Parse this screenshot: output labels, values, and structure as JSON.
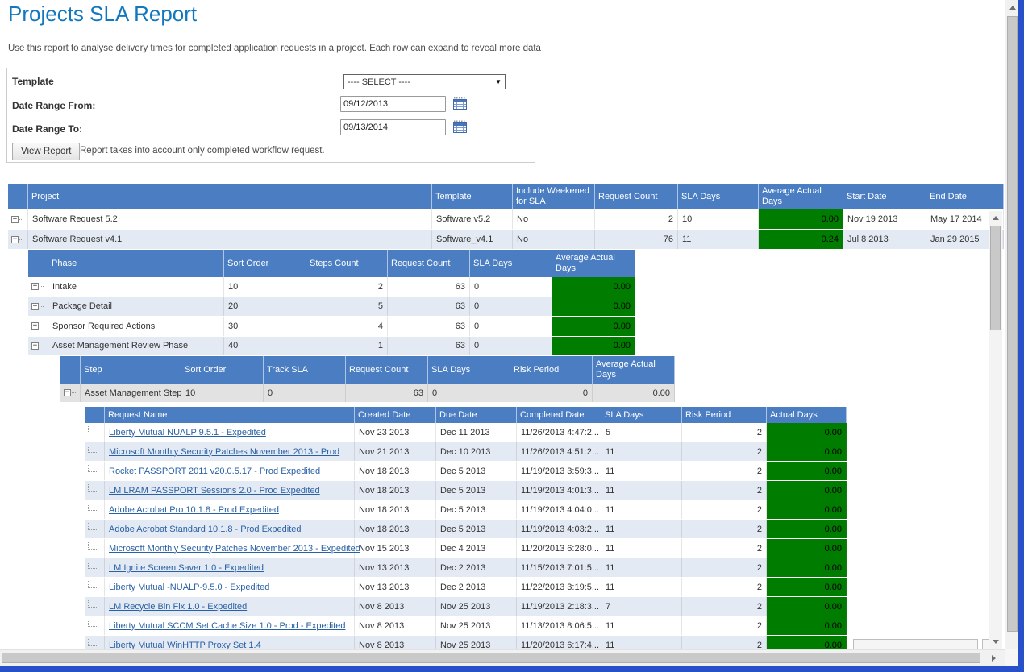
{
  "page": {
    "title": "Projects SLA Report",
    "description": "Use this report to analyse delivery times for completed application requests in a project. Each row can expand to reveal more data"
  },
  "form": {
    "template_label": "Template",
    "template_value": "---- SELECT ----",
    "date_from_label": "Date Range From:",
    "date_from_value": "09/12/2013",
    "date_to_label": "Date Range To:",
    "date_to_value": "09/13/2014",
    "view_report_label": "View Report",
    "note": "Report takes into account only completed workflow request."
  },
  "colors": {
    "header_blue": "#4a7dc2",
    "green": "#007c00",
    "link_blue": "#2961a5",
    "title_blue": "#1377bd",
    "alt_row": "#e4eaf4",
    "frame_blue": "#2850c8"
  },
  "projects_grid": {
    "headers": [
      "Project",
      "Template",
      "Include Weekened for SLA",
      "Request Count",
      "SLA Days",
      "Average Actual Days",
      "Start Date",
      "End Date"
    ],
    "rows": [
      {
        "expander": "plus",
        "project": "Software Request 5.2",
        "template": "Software v5.2",
        "include_weekend": "No",
        "request_count": "2",
        "sla_days": "10",
        "avg_actual_days": "0.00",
        "start_date": "Nov 19 2013",
        "end_date": "May 17 2014"
      },
      {
        "expander": "minus",
        "project": "Software Request v4.1",
        "template": "Software_v4.1",
        "include_weekend": "No",
        "request_count": "76",
        "sla_days": "11",
        "avg_actual_days": "0.24",
        "start_date": "Jul 8 2013",
        "end_date": "Jan 29 2015"
      }
    ]
  },
  "phases_grid": {
    "headers": [
      "Phase",
      "Sort Order",
      "Steps Count",
      "Request Count",
      "SLA Days",
      "Average Actual Days"
    ],
    "rows": [
      {
        "expander": "plus",
        "phase": "Intake",
        "sort_order": "10",
        "steps_count": "2",
        "request_count": "63",
        "sla_days": "0",
        "avg_actual_days": "0.00"
      },
      {
        "expander": "plus",
        "phase": "Package Detail",
        "sort_order": "20",
        "steps_count": "5",
        "request_count": "63",
        "sla_days": "0",
        "avg_actual_days": "0.00"
      },
      {
        "expander": "plus",
        "phase": "Sponsor Required Actions",
        "sort_order": "30",
        "steps_count": "4",
        "request_count": "63",
        "sla_days": "0",
        "avg_actual_days": "0.00"
      },
      {
        "expander": "minus",
        "phase": "Asset Management Review Phase",
        "sort_order": "40",
        "steps_count": "1",
        "request_count": "63",
        "sla_days": "0",
        "avg_actual_days": "0.00"
      }
    ]
  },
  "steps_grid": {
    "headers": [
      "Step",
      "Sort Order",
      "Track SLA",
      "Request Count",
      "SLA Days",
      "Risk Period",
      "Average Actual Days"
    ],
    "rows": [
      {
        "expander": "minus",
        "step": "Asset Management Step",
        "sort_order": "10",
        "track_sla": "0",
        "request_count": "63",
        "sla_days": "0",
        "risk_period": "0",
        "avg_actual_days": "0.00"
      }
    ]
  },
  "requests_grid": {
    "headers": [
      "Request Name",
      "Created Date",
      "Due Date",
      "Completed Date",
      "SLA Days",
      "Risk Period",
      "Actual Days"
    ],
    "rows": [
      {
        "expander": "leaf",
        "request_name": "Liberty Mutual NUALP 9.5.1 - Expedited",
        "created_date": "Nov 23 2013",
        "due_date": "Dec 11 2013",
        "completed_date": "11/26/2013 4:47:2...",
        "sla_days": "5",
        "risk_period": "2",
        "actual_days": "0.00"
      },
      {
        "expander": "leaf",
        "request_name": "Microsoft Monthly Security Patches November 2013 - Prod",
        "created_date": "Nov 21 2013",
        "due_date": "Dec 10 2013",
        "completed_date": "11/26/2013 4:51:2...",
        "sla_days": "11",
        "risk_period": "2",
        "actual_days": "0.00"
      },
      {
        "expander": "leaf",
        "request_name": "Rocket PASSPORT 2011 v20.0.5.17 - Prod Expedited",
        "created_date": "Nov 18 2013",
        "due_date": "Dec 5 2013",
        "completed_date": "11/19/2013 3:59:3...",
        "sla_days": "11",
        "risk_period": "2",
        "actual_days": "0.00"
      },
      {
        "expander": "leaf",
        "request_name": "LM LRAM PASSPORT Sessions 2.0 - Prod Expedited",
        "created_date": "Nov 18 2013",
        "due_date": "Dec 5 2013",
        "completed_date": "11/19/2013 4:01:3...",
        "sla_days": "11",
        "risk_period": "2",
        "actual_days": "0.00"
      },
      {
        "expander": "leaf",
        "request_name": "Adobe Acrobat Pro 10.1.8 - Prod Expedited",
        "created_date": "Nov 18 2013",
        "due_date": "Dec 5 2013",
        "completed_date": "11/19/2013 4:04:0...",
        "sla_days": "11",
        "risk_period": "2",
        "actual_days": "0.00"
      },
      {
        "expander": "leaf",
        "request_name": "Adobe Acrobat Standard 10.1.8 - Prod Expedited",
        "created_date": "Nov 18 2013",
        "due_date": "Dec 5 2013",
        "completed_date": "11/19/2013 4:03:2...",
        "sla_days": "11",
        "risk_period": "2",
        "actual_days": "0.00"
      },
      {
        "expander": "leaf",
        "request_name": "Microsoft Monthly Security Patches November 2013 - Expedited",
        "created_date": "Nov 15 2013",
        "due_date": "Dec 4 2013",
        "completed_date": "11/20/2013 6:28:0...",
        "sla_days": "11",
        "risk_period": "2",
        "actual_days": "0.00"
      },
      {
        "expander": "leaf",
        "request_name": "LM Ignite Screen Saver 1.0 - Expedited",
        "created_date": "Nov 13 2013",
        "due_date": "Dec 2 2013",
        "completed_date": "11/15/2013 7:01:5...",
        "sla_days": "11",
        "risk_period": "2",
        "actual_days": "0.00"
      },
      {
        "expander": "leaf",
        "request_name": "Liberty Mutual -NUALP-9.5.0 - Expedited",
        "created_date": "Nov 13 2013",
        "due_date": "Dec 2 2013",
        "completed_date": "11/22/2013 3:19:5...",
        "sla_days": "11",
        "risk_period": "2",
        "actual_days": "0.00"
      },
      {
        "expander": "leaf",
        "request_name": "LM Recycle Bin Fix 1.0 - Expedited",
        "created_date": "Nov 8 2013",
        "due_date": "Nov 25 2013",
        "completed_date": "11/19/2013 2:18:3...",
        "sla_days": "7",
        "risk_period": "2",
        "actual_days": "0.00"
      },
      {
        "expander": "leaf",
        "request_name": "Liberty Mutual SCCM Set Cache Size 1.0 - Prod - Expedited",
        "created_date": "Nov 8 2013",
        "due_date": "Nov 25 2013",
        "completed_date": "11/13/2013 8:06:5...",
        "sla_days": "11",
        "risk_period": "2",
        "actual_days": "0.00"
      },
      {
        "expander": "leaf",
        "request_name": "Liberty Mutual WinHTTP Proxy Set 1.4",
        "created_date": "Nov 8 2013",
        "due_date": "Nov 25 2013",
        "completed_date": "11/20/2013 6:17:4...",
        "sla_days": "11",
        "risk_period": "2",
        "actual_days": "0.00"
      }
    ]
  }
}
